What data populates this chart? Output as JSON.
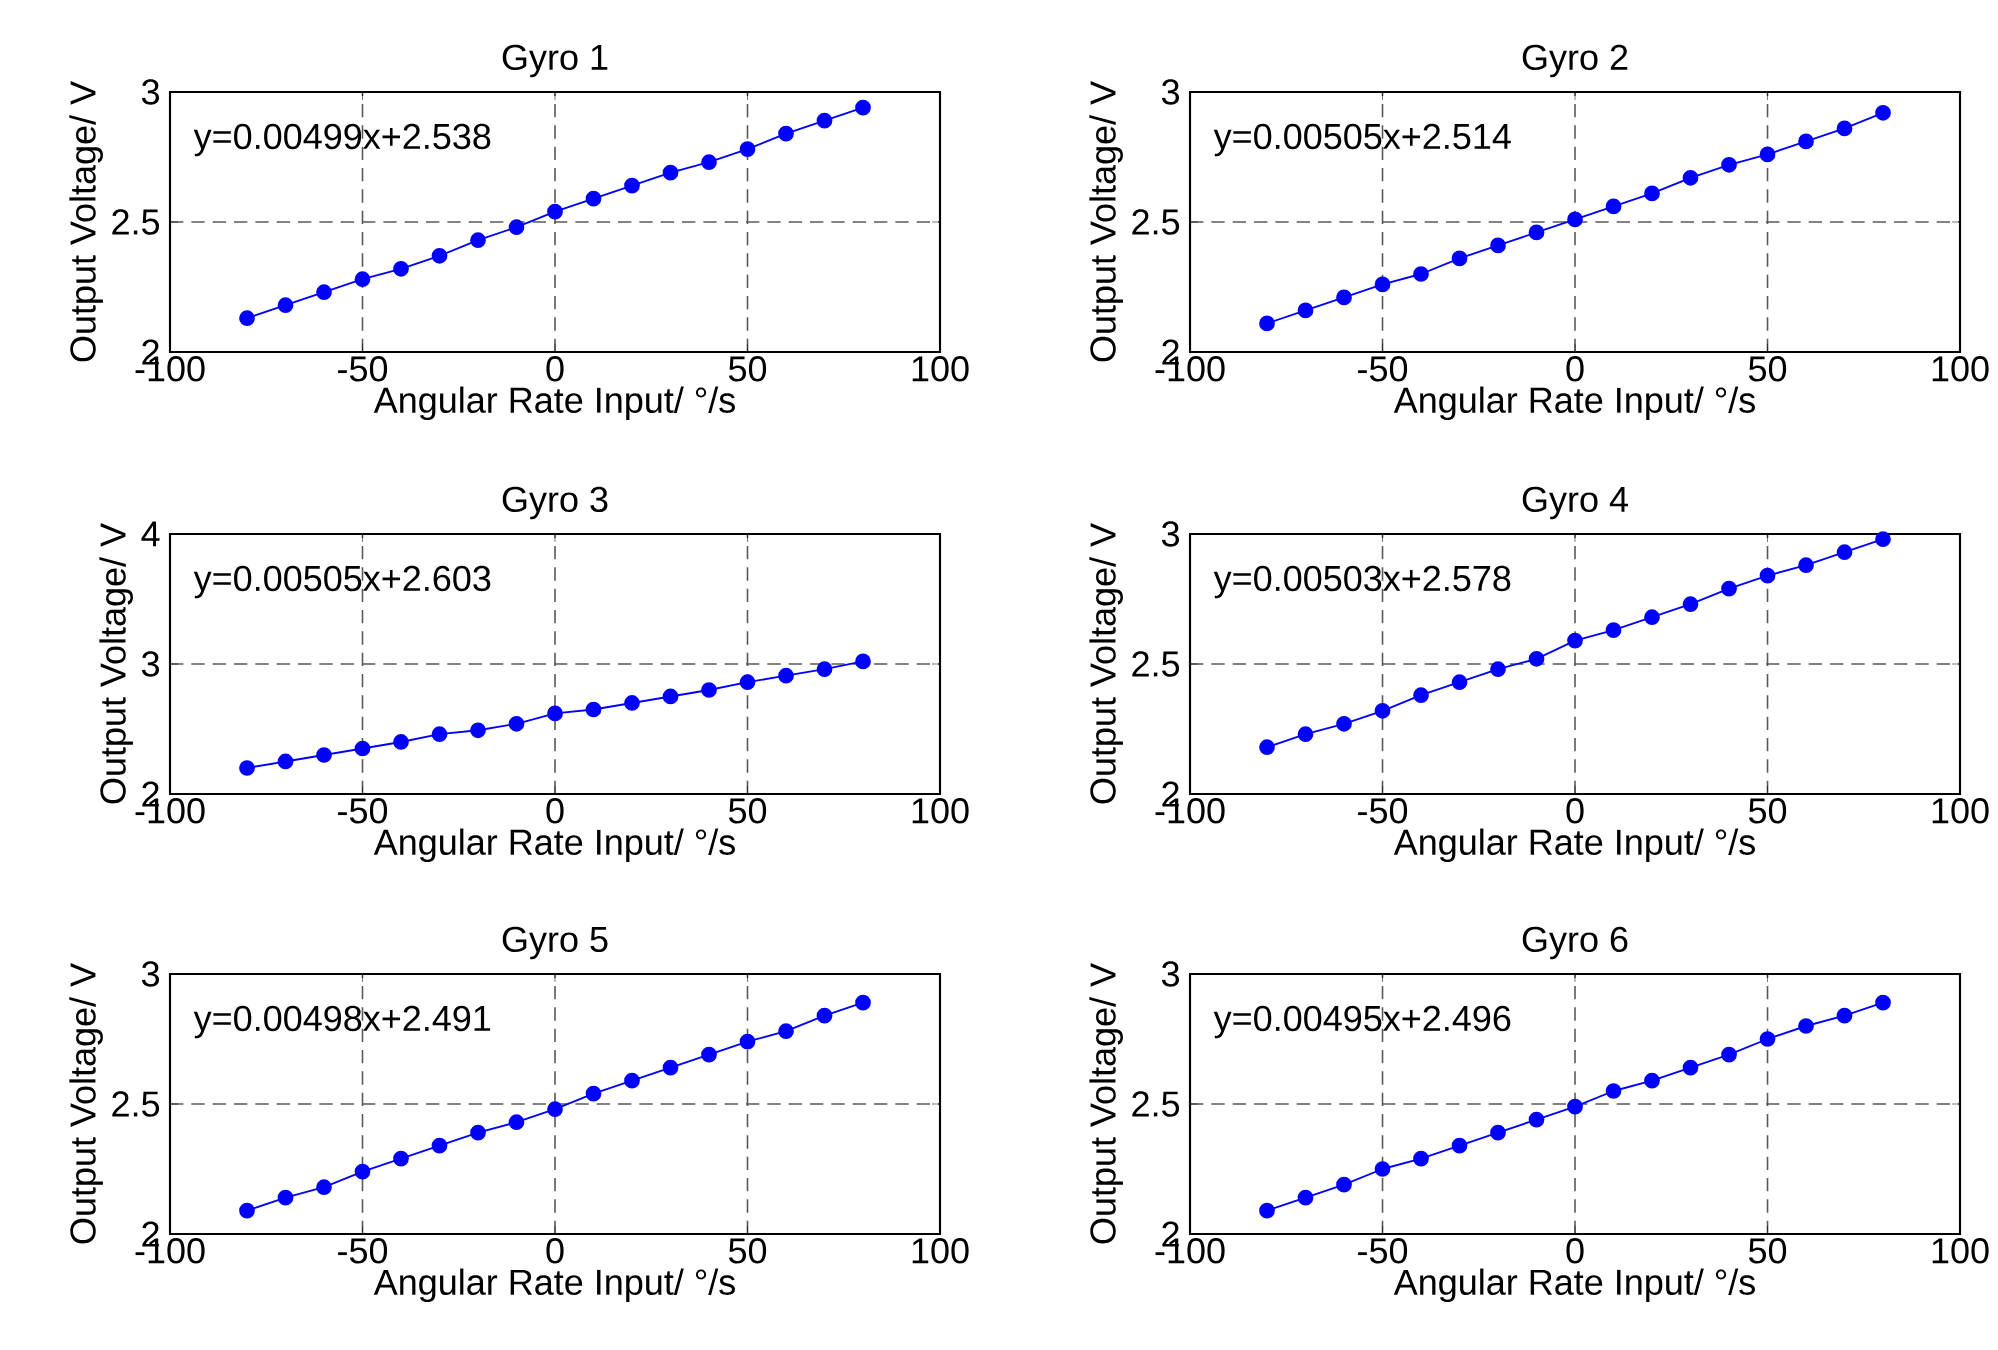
{
  "chart_data": [
    {
      "type": "line",
      "title": "Gyro 1",
      "xlabel": "Angular Rate Input/ °/s",
      "ylabel": "Output Voltage/ V",
      "x": [
        -80,
        -70,
        -60,
        -50,
        -40,
        -30,
        -20,
        -10,
        0,
        10,
        20,
        30,
        40,
        50,
        60,
        70,
        80
      ],
      "series": [
        {
          "color": "#0000ff",
          "values": [
            2.13,
            2.18,
            2.23,
            2.28,
            2.32,
            2.37,
            2.43,
            2.48,
            2.54,
            2.59,
            2.64,
            2.69,
            2.73,
            2.78,
            2.84,
            2.89,
            2.94
          ]
        }
      ],
      "xlim": [
        -100,
        100
      ],
      "ylim": [
        2,
        3
      ],
      "xticks": [
        -100,
        -50,
        0,
        50,
        100
      ],
      "yticks": [
        2,
        2.5,
        3
      ],
      "grid": true,
      "marker": "circle",
      "line_style": "solid",
      "annotations": [
        "y=0.00499x+2.538"
      ]
    },
    {
      "type": "line",
      "title": "Gyro 2",
      "xlabel": "Angular Rate Input/ °/s",
      "ylabel": "Output Voltage/ V",
      "x": [
        -80,
        -70,
        -60,
        -50,
        -40,
        -30,
        -20,
        -10,
        0,
        10,
        20,
        30,
        40,
        50,
        60,
        70,
        80
      ],
      "series": [
        {
          "color": "#0000ff",
          "values": [
            2.11,
            2.16,
            2.21,
            2.26,
            2.3,
            2.36,
            2.41,
            2.46,
            2.51,
            2.56,
            2.61,
            2.67,
            2.72,
            2.76,
            2.81,
            2.86,
            2.92
          ]
        }
      ],
      "xlim": [
        -100,
        100
      ],
      "ylim": [
        2,
        3
      ],
      "xticks": [
        -100,
        -50,
        0,
        50,
        100
      ],
      "yticks": [
        2,
        2.5,
        3
      ],
      "grid": true,
      "marker": "circle",
      "line_style": "solid",
      "annotations": [
        "y=0.00505x+2.514"
      ]
    },
    {
      "type": "line",
      "title": "Gyro 3",
      "xlabel": "Angular Rate Input/ °/s",
      "ylabel": "Output Voltage/ V",
      "x": [
        -80,
        -70,
        -60,
        -50,
        -40,
        -30,
        -20,
        -10,
        0,
        10,
        20,
        30,
        40,
        50,
        60,
        70,
        80
      ],
      "series": [
        {
          "color": "#0000ff",
          "values": [
            2.2,
            2.25,
            2.3,
            2.35,
            2.4,
            2.46,
            2.49,
            2.54,
            2.62,
            2.65,
            2.7,
            2.75,
            2.8,
            2.86,
            2.91,
            2.96,
            3.02
          ]
        }
      ],
      "xlim": [
        -100,
        100
      ],
      "ylim": [
        2,
        4
      ],
      "xticks": [
        -100,
        -50,
        0,
        50,
        100
      ],
      "yticks": [
        2,
        3,
        4
      ],
      "grid": true,
      "marker": "circle",
      "line_style": "solid",
      "annotations": [
        "y=0.00505x+2.603"
      ]
    },
    {
      "type": "line",
      "title": "Gyro 4",
      "xlabel": "Angular Rate Input/ °/s",
      "ylabel": "Output Voltage/ V",
      "x": [
        -80,
        -70,
        -60,
        -50,
        -40,
        -30,
        -20,
        -10,
        0,
        10,
        20,
        30,
        40,
        50,
        60,
        70,
        80
      ],
      "series": [
        {
          "color": "#0000ff",
          "values": [
            2.18,
            2.23,
            2.27,
            2.32,
            2.38,
            2.43,
            2.48,
            2.52,
            2.59,
            2.63,
            2.68,
            2.73,
            2.79,
            2.84,
            2.88,
            2.93,
            2.98
          ]
        }
      ],
      "xlim": [
        -100,
        100
      ],
      "ylim": [
        2,
        3
      ],
      "xticks": [
        -100,
        -50,
        0,
        50,
        100
      ],
      "yticks": [
        2,
        2.5,
        3
      ],
      "grid": true,
      "marker": "circle",
      "line_style": "solid",
      "annotations": [
        "y=0.00503x+2.578"
      ]
    },
    {
      "type": "line",
      "title": "Gyro 5",
      "xlabel": "Angular Rate Input/ °/s",
      "ylabel": "Output Voltage/ V",
      "x": [
        -80,
        -70,
        -60,
        -50,
        -40,
        -30,
        -20,
        -10,
        0,
        10,
        20,
        30,
        40,
        50,
        60,
        70,
        80
      ],
      "series": [
        {
          "color": "#0000ff",
          "values": [
            2.09,
            2.14,
            2.18,
            2.24,
            2.29,
            2.34,
            2.39,
            2.43,
            2.48,
            2.54,
            2.59,
            2.64,
            2.69,
            2.74,
            2.78,
            2.84,
            2.89
          ]
        }
      ],
      "xlim": [
        -100,
        100
      ],
      "ylim": [
        2,
        3
      ],
      "xticks": [
        -100,
        -50,
        0,
        50,
        100
      ],
      "yticks": [
        2,
        2.5,
        3
      ],
      "grid": true,
      "marker": "circle",
      "line_style": "solid",
      "annotations": [
        "y=0.00498x+2.491"
      ]
    },
    {
      "type": "line",
      "title": "Gyro 6",
      "xlabel": "Angular Rate Input/ °/s",
      "ylabel": "Output Voltage/ V",
      "x": [
        -80,
        -70,
        -60,
        -50,
        -40,
        -30,
        -20,
        -10,
        0,
        10,
        20,
        30,
        40,
        50,
        60,
        70,
        80
      ],
      "series": [
        {
          "color": "#0000ff",
          "values": [
            2.09,
            2.14,
            2.19,
            2.25,
            2.29,
            2.34,
            2.39,
            2.44,
            2.49,
            2.55,
            2.59,
            2.64,
            2.69,
            2.75,
            2.8,
            2.84,
            2.89
          ]
        }
      ],
      "xlim": [
        -100,
        100
      ],
      "ylim": [
        2,
        3
      ],
      "xticks": [
        -100,
        -50,
        0,
        50,
        100
      ],
      "yticks": [
        2,
        2.5,
        3
      ],
      "grid": true,
      "marker": "circle",
      "line_style": "solid",
      "annotations": [
        "y=0.00495x+2.496"
      ]
    }
  ]
}
